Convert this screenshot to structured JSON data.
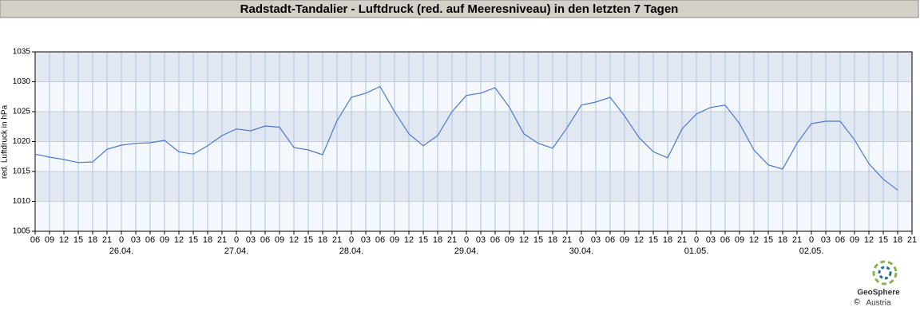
{
  "chart_data": {
    "type": "line",
    "title": "Radstadt-Tandalier - Luftdruck (red. auf Meeresniveau) in den letzten 7 Tagen",
    "y_label": "red. Luftdruck in hPa",
    "categories": [
      "06",
      "09",
      "12",
      "15",
      "18",
      "21",
      "0",
      "03",
      "06",
      "09",
      "12",
      "15",
      "18",
      "21",
      "0",
      "03",
      "06",
      "09",
      "12",
      "15",
      "18",
      "21",
      "0",
      "03",
      "06",
      "09",
      "12",
      "15",
      "18",
      "21",
      "0",
      "03",
      "06",
      "09",
      "12",
      "15",
      "18",
      "21",
      "0",
      "03",
      "06",
      "09",
      "12",
      "15",
      "18",
      "21",
      "0",
      "03",
      "06",
      "09",
      "12",
      "15",
      "18",
      "21",
      "0",
      "03",
      "06",
      "09",
      "12",
      "15",
      "18",
      "21"
    ],
    "dates": [
      null,
      null,
      null,
      null,
      null,
      null,
      "26.04.",
      null,
      null,
      null,
      null,
      null,
      null,
      null,
      "27.04.",
      null,
      null,
      null,
      null,
      null,
      null,
      null,
      "28.04.",
      null,
      null,
      null,
      null,
      null,
      null,
      null,
      "29.04.",
      null,
      null,
      null,
      null,
      null,
      null,
      null,
      "30.04.",
      null,
      null,
      null,
      null,
      null,
      null,
      null,
      "01.05.",
      null,
      null,
      null,
      null,
      null,
      null,
      null,
      "02.05.",
      null,
      null,
      null,
      null,
      null,
      null,
      null
    ],
    "series": [
      {
        "name": "Luftdruck",
        "color": "#4a78d0",
        "values": [
          1017.9,
          1017.4,
          1017.0,
          1016.5,
          1016.6,
          1018.7,
          1019.4,
          1019.7,
          1019.8,
          1020.2,
          1018.3,
          1017.9,
          1019.3,
          1021.0,
          1022.1,
          1021.8,
          1022.6,
          1022.4,
          1019.0,
          1018.6,
          1017.8,
          1023.5,
          1027.4,
          1028.1,
          1029.2,
          1025.0,
          1021.3,
          1019.3,
          1021.0,
          1025.0,
          1027.7,
          1028.1,
          1029.0,
          1025.7,
          1021.3,
          1019.7,
          1018.9,
          1022.3,
          1026.1,
          1026.6,
          1027.4,
          1024.3,
          1020.7,
          1018.3,
          1017.3,
          1022.1,
          1024.6,
          1025.7,
          1026.1,
          1023.0,
          1018.6,
          1016.1,
          1015.4,
          1019.7,
          1023.0,
          1023.4,
          1023.4,
          1020.3,
          1016.3,
          1013.7,
          1011.9,
          null
        ]
      }
    ],
    "ylim": [
      1005,
      1035
    ],
    "yticks": [
      1005,
      1010,
      1015,
      1020,
      1025,
      1030,
      1035
    ],
    "grid": true,
    "logo": {
      "name": "GeoSphere",
      "sub": "Austria",
      "copyright": "©"
    }
  }
}
